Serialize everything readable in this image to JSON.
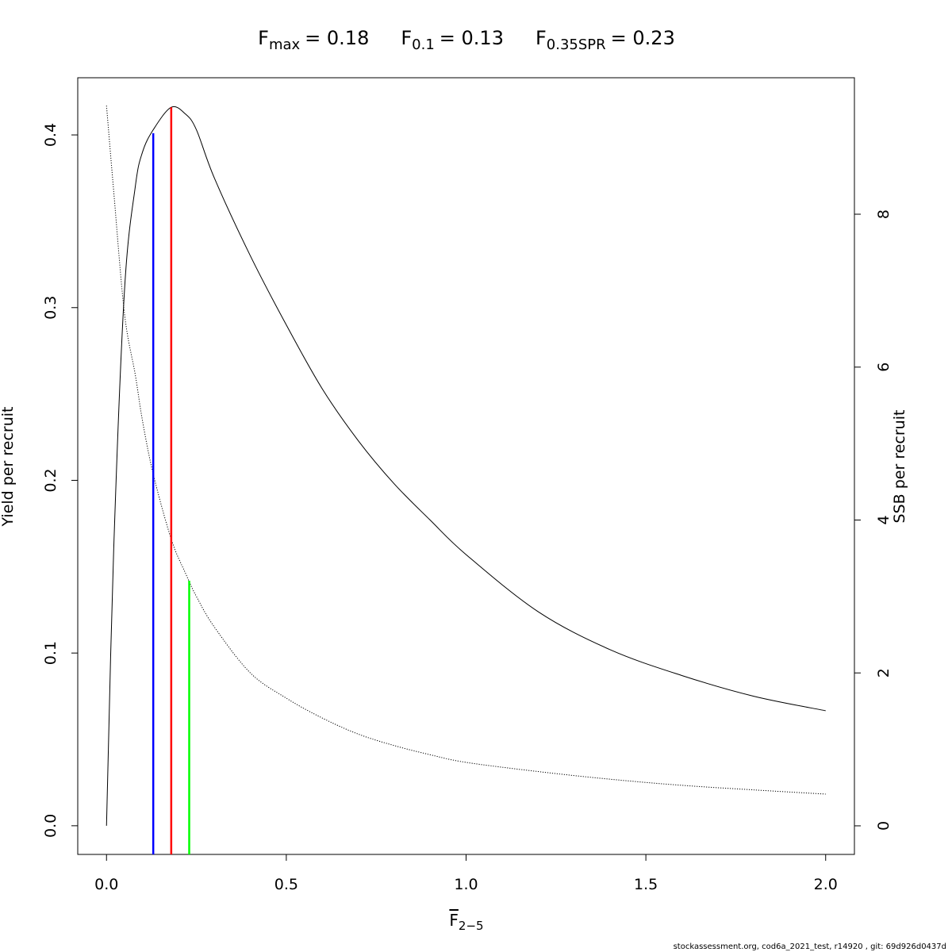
{
  "chart_data": {
    "type": "line",
    "title_parts": [
      {
        "symbol": "F",
        "subscript": "max",
        "label": "= 0.18"
      },
      {
        "symbol": "F",
        "subscript": "0.1",
        "label": "= 0.13"
      },
      {
        "symbol": "F",
        "subscript": "0.35SPR",
        "label": "= 0.23"
      }
    ],
    "x_label": {
      "symbol": "F",
      "subscript": "2−5"
    },
    "y_label": "Yield per recruit",
    "y2_label": "SSB per recruit",
    "footer": "stockassessment.org, cod6a_2021_test, r14920 , git: 69d926d0437d",
    "x": [
      0,
      0.02,
      0.05,
      0.08,
      0.1,
      0.13,
      0.18,
      0.22,
      0.25,
      0.3,
      0.4,
      0.5,
      0.6,
      0.7,
      0.8,
      0.9,
      1.0,
      1.2,
      1.4,
      1.6,
      1.8,
      2.0
    ],
    "series": [
      {
        "color": "#000000",
        "dash": "solid",
        "axis": "y",
        "values": [
          0,
          0.16,
          0.31,
          0.37,
          0.39,
          0.403,
          0.416,
          0.412,
          0.403,
          0.375,
          0.33,
          0.29,
          0.253,
          0.223,
          0.198,
          0.177,
          0.157,
          0.124,
          0.102,
          0.087,
          0.075,
          0.0666
        ]
      },
      {
        "color": "#000000",
        "dash": "dotted",
        "axis": "y2",
        "values": [
          9.42,
          8.3,
          6.7,
          5.9,
          5.3,
          4.6,
          3.75,
          3.3,
          3.0,
          2.6,
          2.0,
          1.67,
          1.41,
          1.2,
          1.05,
          0.93,
          0.83,
          0.71,
          0.61,
          0.53,
          0.47,
          0.415
        ]
      }
    ],
    "reference_lines": [
      {
        "x": 0.13,
        "y": 0.401,
        "color": "#0000ff"
      },
      {
        "x": 0.18,
        "y": 0.416,
        "color": "#ff0000"
      },
      {
        "x": 0.23,
        "y": 0.1419,
        "color": "#00ff00"
      }
    ],
    "xlim": [
      -0.08,
      2.08
    ],
    "xticks": [
      {
        "value": 0,
        "label": "0.0"
      },
      0.5,
      {
        "value": 1,
        "label": "1.0"
      },
      1.5,
      {
        "value": 2,
        "label": "2.0"
      }
    ],
    "ylim": [
      -0.0166,
      0.4331
    ],
    "yticks": [
      {
        "value": 0,
        "label": "0.0"
      },
      0.1,
      0.2,
      0.3,
      0.4
    ],
    "y2lim": [
      -0.374,
      9.785
    ],
    "y2ticks": [
      0,
      2,
      4,
      6,
      8
    ]
  }
}
